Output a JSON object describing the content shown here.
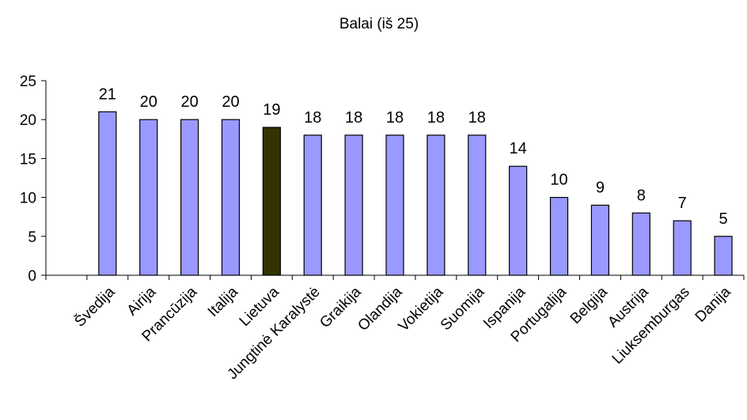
{
  "chart_data": {
    "type": "bar",
    "title": "Balai (iš 25)",
    "xlabel": "",
    "ylabel": "",
    "ylim": [
      0,
      25
    ],
    "yticks": [
      0,
      5,
      10,
      15,
      20,
      25
    ],
    "grid": false,
    "categories": [
      "Švedija",
      "Airija",
      "Prancūzija",
      "Italija",
      "Lietuva",
      "Jungtinė Karalystė",
      "Graikija",
      "Olandija",
      "Vokietija",
      "Suomija",
      "Ispanija",
      "Portugalija",
      "Belgija",
      "Austrija",
      "Liuksemburgas",
      "Danija"
    ],
    "values": [
      21,
      20,
      20,
      20,
      19,
      18,
      18,
      18,
      18,
      18,
      14,
      10,
      9,
      8,
      7,
      5
    ],
    "highlight_category": "Lietuva",
    "colors": {
      "bar": "#9999ff",
      "highlight": "#333300",
      "stroke": "#000000"
    }
  }
}
